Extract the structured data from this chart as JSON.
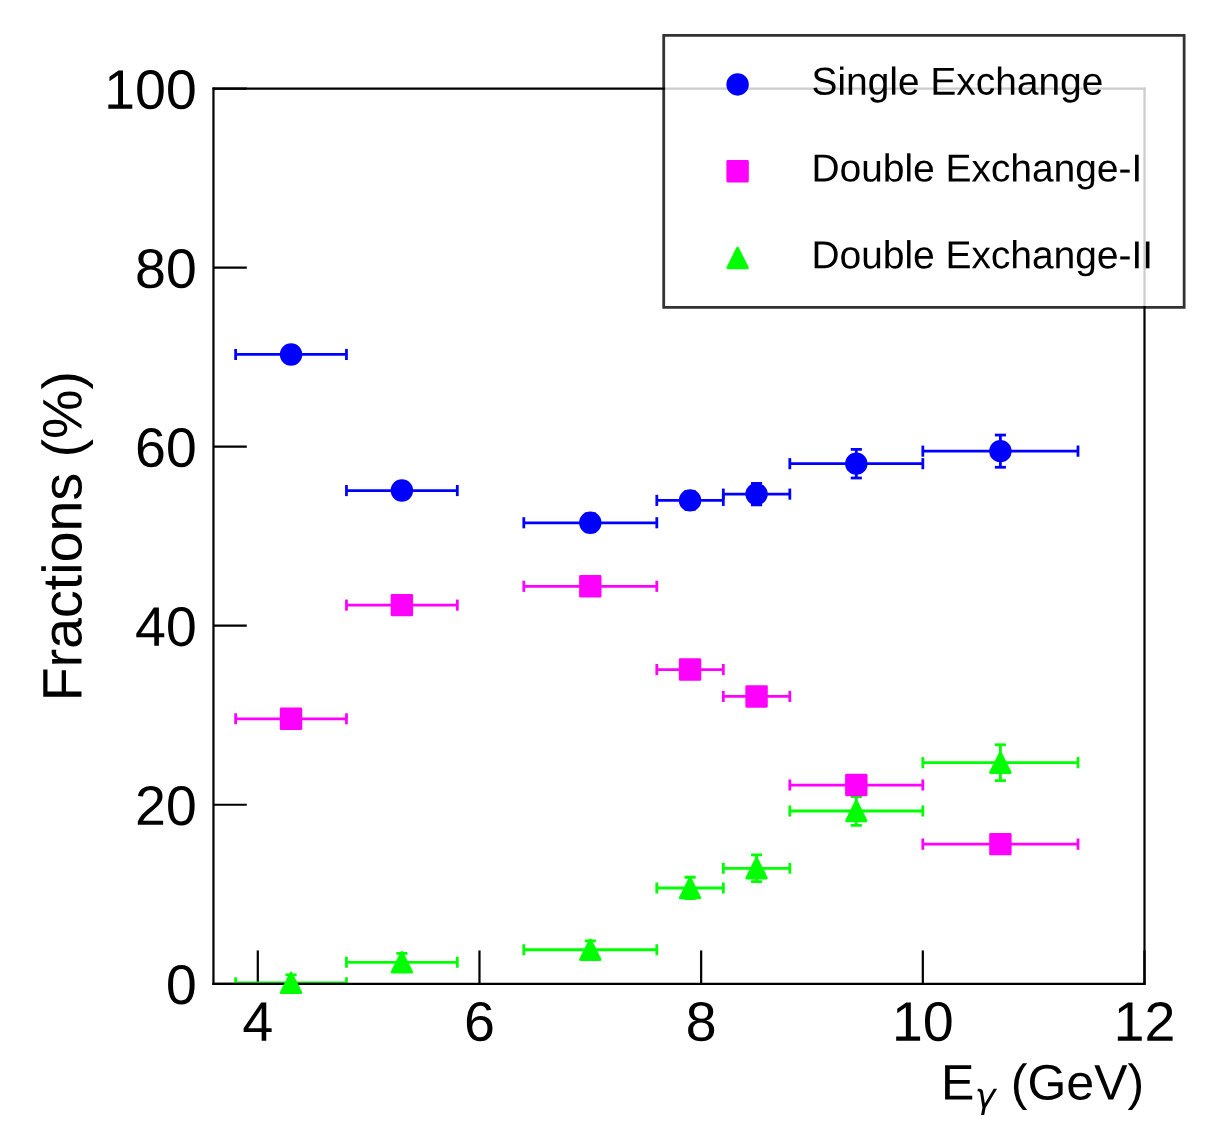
{
  "chart_data": {
    "type": "scatter",
    "xlabel": "E$_{γ}$ (GeV)",
    "ylabel": "Fractions (%)",
    "xlim": [
      3.6,
      12
    ],
    "xticks": [
      4,
      6,
      8,
      10,
      12
    ],
    "ylim": [
      0,
      100
    ],
    "yticks": [
      0,
      20,
      40,
      60,
      80,
      100
    ],
    "grid": false,
    "legend": "top right",
    "series": [
      {
        "name": "Single Exchange",
        "color": "#0000ff",
        "marker": "circle",
        "x": [
          4.3,
          5.3,
          7.0,
          7.9,
          8.5,
          9.4,
          10.7
        ],
        "values": [
          70.3,
          55.1,
          51.5,
          54.0,
          54.7,
          58.1,
          59.5
        ],
        "xerrors": [
          0.5,
          0.5,
          0.6,
          0.3,
          0.3,
          0.6,
          0.7
        ],
        "errors": [
          0.8,
          0.8,
          1.0,
          1.0,
          1.2,
          1.6,
          1.8
        ]
      },
      {
        "name": "Double Exchange-I",
        "color": "#ff00ff",
        "marker": "square",
        "x": [
          4.3,
          5.3,
          7.0,
          7.9,
          8.5,
          9.4,
          10.7
        ],
        "values": [
          29.6,
          42.3,
          44.4,
          35.1,
          32.1,
          22.2,
          15.6
        ],
        "xerrors": [
          0.5,
          0.5,
          0.6,
          0.3,
          0.3,
          0.6,
          0.7
        ],
        "errors": [
          0.8,
          0.8,
          0.8,
          0.8,
          0.8,
          0.8,
          0.8
        ]
      },
      {
        "name": "Double Exchange-II",
        "color": "#00ff00",
        "marker": "triangle",
        "x": [
          4.3,
          5.3,
          7.0,
          7.9,
          8.5,
          9.4,
          10.7
        ],
        "values": [
          0.1,
          2.4,
          3.8,
          10.7,
          12.9,
          19.3,
          24.7
        ],
        "xerrors": [
          0.5,
          0.5,
          0.6,
          0.3,
          0.3,
          0.6,
          0.7
        ],
        "errors": [
          0.9,
          1.0,
          1.0,
          1.2,
          1.5,
          1.6,
          2.0
        ]
      }
    ]
  }
}
